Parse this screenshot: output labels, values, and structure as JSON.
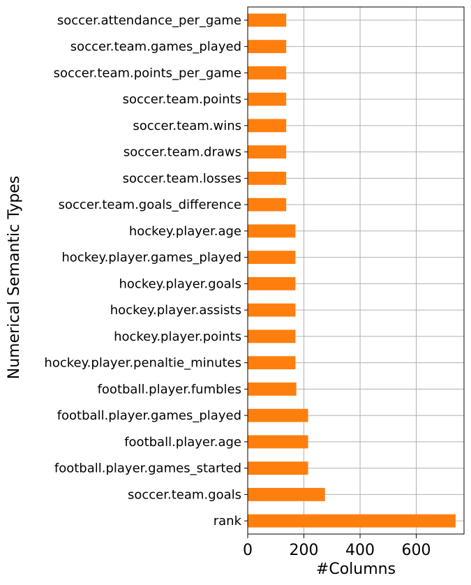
{
  "chart_data": {
    "type": "bar",
    "orientation": "horizontal",
    "xlabel": "#Columns",
    "ylabel": "Numerical Semantic Types",
    "xlim": [
      0,
      770
    ],
    "xticks": [
      0,
      200,
      400,
      600
    ],
    "grid": true,
    "bar_color": "#ff7f0e",
    "categories": [
      "soccer.attendance_per_game",
      "soccer.team.games_played",
      "soccer.team.points_per_game",
      "soccer.team.points",
      "soccer.team.wins",
      "soccer.team.draws",
      "soccer.team.losses",
      "soccer.team.goals_difference",
      "hockey.player.age",
      "hockey.player.games_played",
      "hockey.player.goals",
      "hockey.player.assists",
      "hockey.player.points",
      "hockey.player.penaltie_minutes",
      "football.player.fumbles",
      "football.player.games_played",
      "football.player.age",
      "football.player.games_started",
      "soccer.team.goals",
      "rank"
    ],
    "values": [
      137,
      137,
      137,
      137,
      137,
      137,
      137,
      137,
      170,
      170,
      170,
      170,
      170,
      170,
      173,
      215,
      215,
      215,
      275,
      740
    ]
  }
}
